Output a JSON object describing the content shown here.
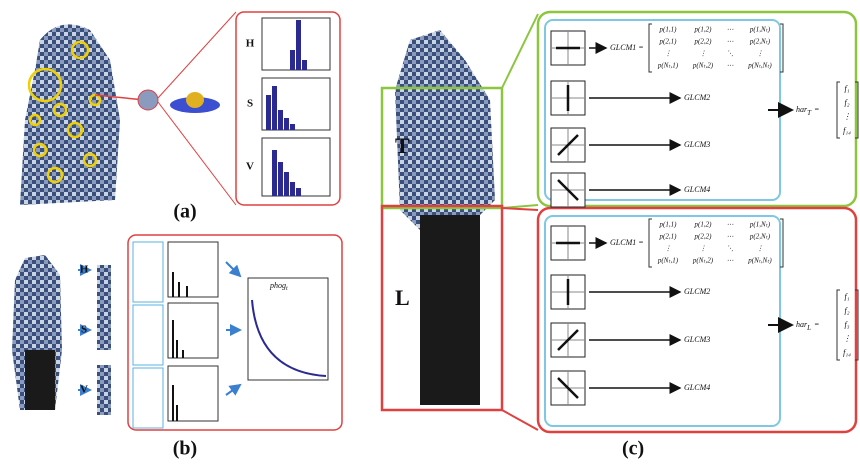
{
  "panel_a": {
    "label": "(a)",
    "channels": [
      "H",
      "S",
      "V"
    ]
  },
  "panel_b": {
    "label": "(b)",
    "channels": [
      "H",
      "S",
      "V"
    ],
    "descriptor": {
      "base": "phog",
      "sub": "t"
    }
  },
  "panel_c": {
    "label": "(c)",
    "matrix": [
      [
        "p(1,1)",
        "p(1,2)",
        "⋯",
        "p(1,Nₜ)"
      ],
      [
        "p(2,1)",
        "p(2,2)",
        "⋯",
        "p(2,Nₜ)"
      ],
      [
        "⋮",
        "⋮",
        "⋱",
        "⋮"
      ],
      [
        "p(Nₜ,1)",
        "p(Nₜ,2)",
        "⋯",
        "p(Nₜ,Nₜ)"
      ]
    ],
    "parts": [
      {
        "region": "T",
        "glcm": [
          "GLCM1 =",
          "GLCM2",
          "GLCM3",
          "GLCM4"
        ],
        "har": {
          "base": "har",
          "sub": "T",
          "sign": "="
        },
        "features": [
          "f₁",
          "f₂",
          "⋮",
          "f₁₄"
        ]
      },
      {
        "region": "L",
        "glcm": [
          "GLCM1 =",
          "GLCM2",
          "GLCM3",
          "GLCM4"
        ],
        "har": {
          "base": "har",
          "sub": "L",
          "sign": "="
        },
        "features": [
          "f₁",
          "f₂",
          "f₃",
          "⋮",
          "f₁₄"
        ]
      }
    ]
  }
}
